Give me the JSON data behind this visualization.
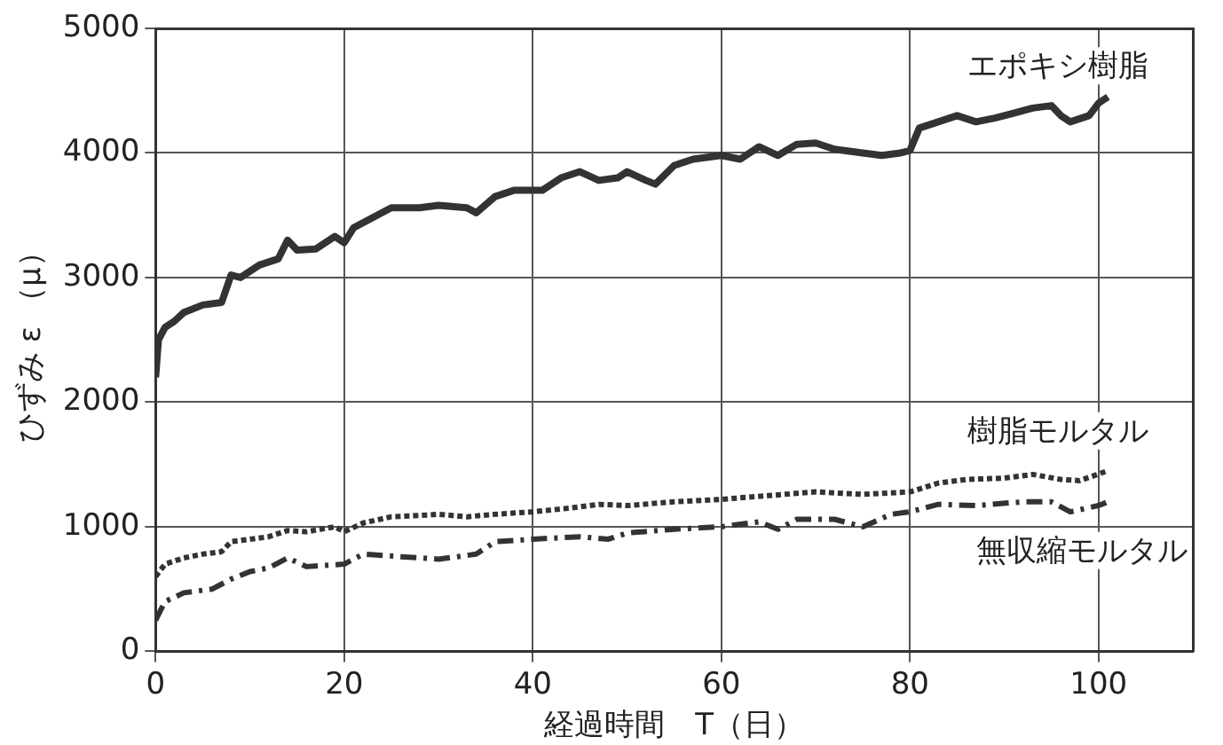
{
  "chart_data": {
    "type": "line",
    "xlabel": "経過時間　T（日）",
    "ylabel": "ひずみ ε （μ）",
    "xlim": [
      0,
      110
    ],
    "xticks": [
      0,
      20,
      40,
      60,
      80,
      100
    ],
    "ylim": [
      0,
      5000
    ],
    "yticks": [
      0,
      1000,
      2000,
      3000,
      4000,
      5000
    ],
    "grid": true,
    "legend": false,
    "marker": "none",
    "series": [
      {
        "name": "エポキシ樹脂",
        "color": "#333333",
        "line_style": "solid",
        "x": [
          0,
          0.3,
          1,
          2,
          3,
          5,
          7,
          8,
          9,
          11,
          13,
          14,
          15,
          17,
          19,
          20,
          21,
          23,
          25,
          28,
          30,
          33,
          34,
          36,
          38,
          41,
          43,
          45,
          47,
          49,
          50,
          52,
          53,
          55,
          57,
          60,
          62,
          64,
          66,
          68,
          70,
          72,
          75,
          77,
          79,
          80,
          81,
          83,
          85,
          87,
          89,
          91,
          93,
          95,
          96,
          97,
          99,
          100,
          101
        ],
        "values": [
          2200,
          2500,
          2600,
          2650,
          2720,
          2780,
          2800,
          3020,
          3000,
          3100,
          3150,
          3300,
          3220,
          3230,
          3330,
          3280,
          3400,
          3480,
          3560,
          3560,
          3580,
          3560,
          3520,
          3650,
          3700,
          3700,
          3800,
          3850,
          3780,
          3800,
          3850,
          3780,
          3750,
          3900,
          3950,
          3980,
          3950,
          4050,
          3980,
          4070,
          4080,
          4030,
          4000,
          3980,
          4000,
          4020,
          4200,
          4250,
          4300,
          4250,
          4280,
          4320,
          4360,
          4380,
          4300,
          4250,
          4300,
          4400,
          4450
        ]
      },
      {
        "name": "樹脂モルタル",
        "color": "#333333",
        "line_style": "dotted",
        "x": [
          0,
          1,
          3,
          5,
          7,
          8,
          10,
          12,
          14,
          16,
          19,
          20,
          22,
          25,
          28,
          30,
          33,
          36,
          40,
          44,
          47,
          50,
          55,
          60,
          65,
          70,
          75,
          80,
          83,
          86,
          90,
          93,
          96,
          98,
          101
        ],
        "values": [
          600,
          700,
          750,
          780,
          800,
          880,
          900,
          920,
          970,
          960,
          1000,
          960,
          1030,
          1080,
          1090,
          1100,
          1080,
          1100,
          1120,
          1150,
          1180,
          1170,
          1200,
          1220,
          1250,
          1280,
          1260,
          1280,
          1350,
          1380,
          1390,
          1420,
          1380,
          1370,
          1450
        ]
      },
      {
        "name": "無収縮モルタル",
        "color": "#333333",
        "line_style": "dashed",
        "x": [
          0,
          1,
          3,
          6,
          8,
          10,
          12,
          14,
          16,
          20,
          22,
          26,
          30,
          34,
          36,
          40,
          45,
          48,
          50,
          55,
          60,
          64,
          66,
          68,
          72,
          75,
          78,
          80,
          83,
          87,
          92,
          95,
          97,
          100,
          101
        ],
        "values": [
          250,
          400,
          470,
          500,
          580,
          640,
          670,
          750,
          680,
          700,
          780,
          760,
          740,
          780,
          880,
          900,
          920,
          900,
          950,
          980,
          1000,
          1040,
          980,
          1060,
          1060,
          1000,
          1100,
          1120,
          1180,
          1170,
          1200,
          1200,
          1120,
          1170,
          1200
        ]
      }
    ]
  }
}
